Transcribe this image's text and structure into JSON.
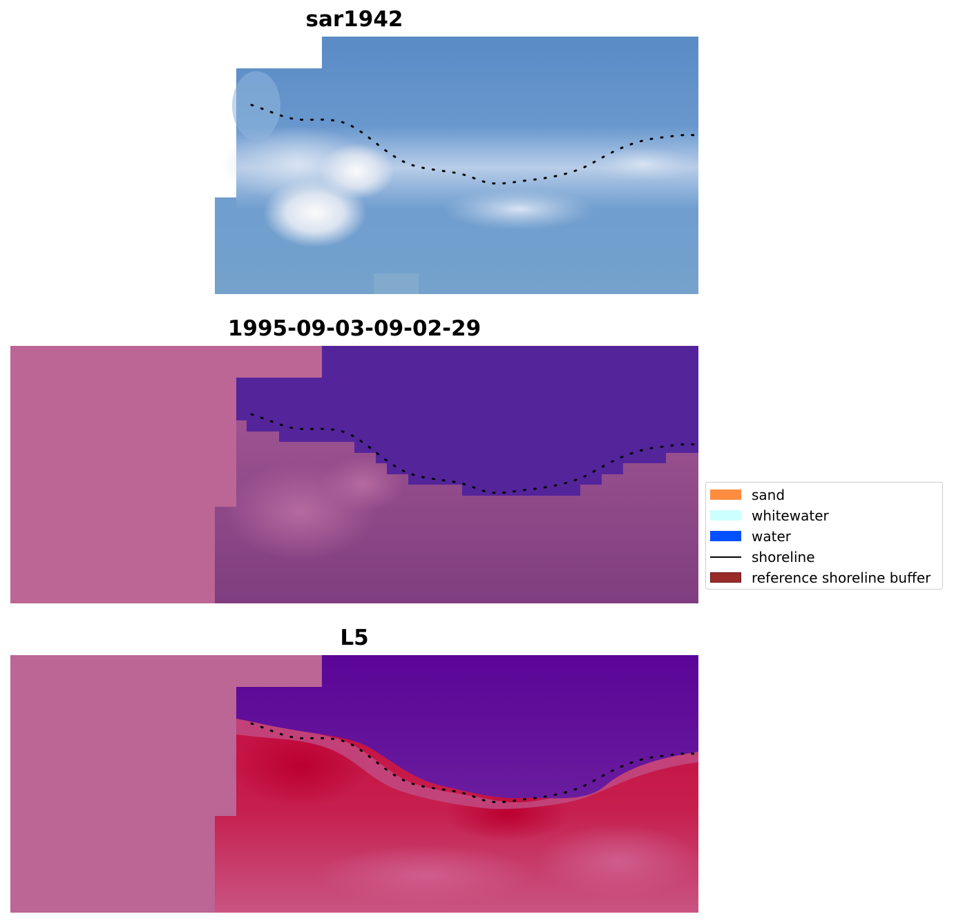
{
  "panels": [
    {
      "title": "sar1942"
    },
    {
      "title": "1995-09-03-09-02-29"
    },
    {
      "title": "L5"
    }
  ],
  "legend": {
    "items": [
      {
        "label": "sand",
        "color": "#ff8c3f",
        "kind": "patch"
      },
      {
        "label": "whitewater",
        "color": "#ccffff",
        "kind": "patch"
      },
      {
        "label": "water",
        "color": "#0050ff",
        "kind": "patch"
      },
      {
        "label": "shoreline",
        "color": "#000000",
        "kind": "line"
      },
      {
        "label": "reference shoreline buffer",
        "color": "#9a2b2b",
        "kind": "patch"
      }
    ]
  },
  "colors": {
    "nodata": "#bb6695",
    "rgb_water": "#5a8ec6",
    "rgb_whitewater": "#eef2f8",
    "classified_water": "#54249b",
    "classified_land": "#9d4f8f",
    "mndwi_water": "#5e0a9a",
    "mndwi_land": "#c2002f",
    "shoreline": "#000000"
  }
}
